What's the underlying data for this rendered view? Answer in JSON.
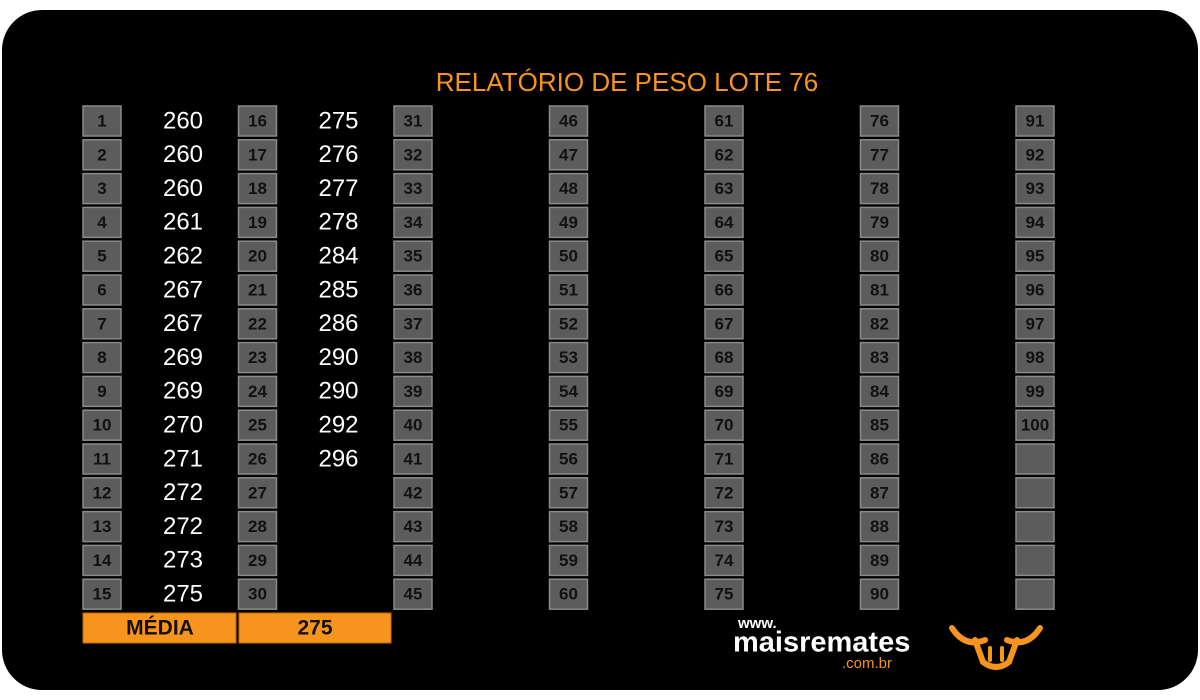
{
  "title": "RELATÓRIO DE PESO LOTE 76",
  "lots": [
    1,
    2,
    3,
    4,
    5,
    6,
    7,
    8,
    9,
    10,
    11,
    12,
    13,
    14,
    15,
    16,
    17,
    18,
    19,
    20,
    21,
    22,
    23,
    24,
    25,
    26,
    27,
    28,
    29,
    30,
    31,
    32,
    33,
    34,
    35,
    36,
    37,
    38,
    39,
    40,
    41,
    42,
    43,
    44,
    45,
    46,
    47,
    48,
    49,
    50,
    51,
    52,
    53,
    54,
    55,
    56,
    57,
    58,
    59,
    60,
    61,
    62,
    63,
    64,
    65,
    66,
    67,
    68,
    69,
    70,
    71,
    72,
    73,
    74,
    75,
    76,
    77,
    78,
    79,
    80,
    81,
    82,
    83,
    84,
    85,
    86,
    87,
    88,
    89,
    90,
    91,
    92,
    93,
    94,
    95,
    96,
    97,
    98,
    99,
    100
  ],
  "weights": [
    260,
    260,
    260,
    261,
    262,
    267,
    267,
    269,
    269,
    270,
    271,
    272,
    272,
    273,
    275,
    275,
    276,
    277,
    278,
    284,
    285,
    286,
    290,
    290,
    292,
    296
  ],
  "average": {
    "label": "MÉDIA",
    "value": 275
  },
  "logo": {
    "prefix": "www.",
    "name": "maisremates",
    "suffix": ".com.br"
  }
}
